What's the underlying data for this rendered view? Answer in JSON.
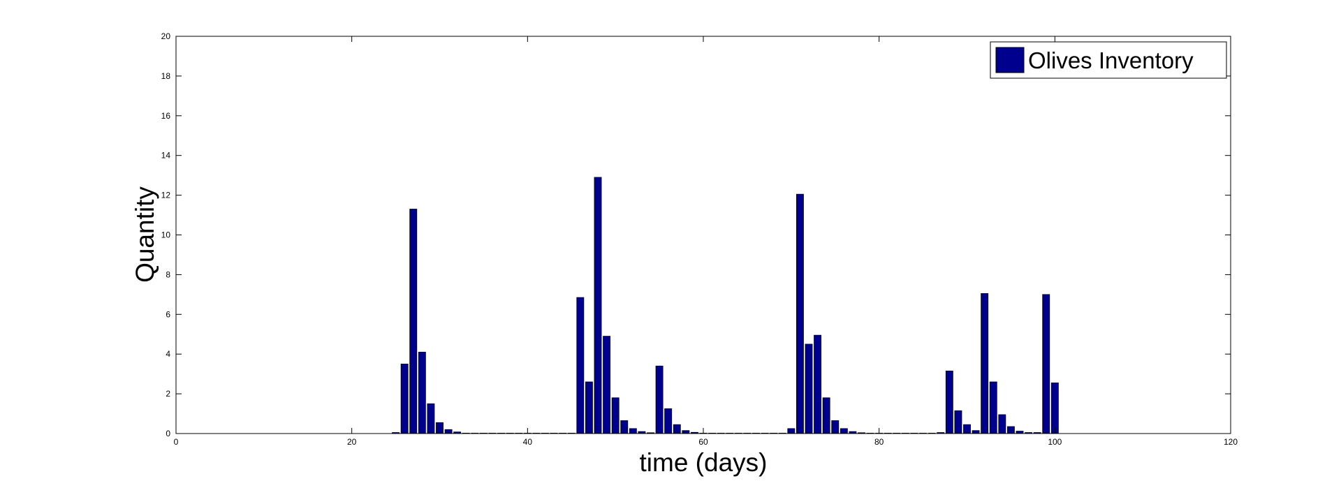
{
  "chart_data": {
    "type": "bar",
    "x": [
      25,
      26,
      27,
      28,
      29,
      30,
      31,
      32,
      33,
      34,
      35,
      36,
      37,
      38,
      39,
      40,
      41,
      42,
      43,
      44,
      45,
      46,
      47,
      48,
      49,
      50,
      51,
      52,
      53,
      54,
      55,
      56,
      57,
      58,
      59,
      60,
      61,
      62,
      63,
      64,
      65,
      66,
      67,
      68,
      69,
      70,
      71,
      72,
      73,
      74,
      75,
      76,
      77,
      78,
      79,
      80,
      81,
      82,
      83,
      84,
      85,
      86,
      87,
      88,
      89,
      90,
      91,
      92,
      93,
      94,
      95,
      96,
      97,
      98,
      99,
      100
    ],
    "series": [
      {
        "name": "Olives Inventory",
        "color": "#00008f",
        "values": [
          0.05,
          3.5,
          11.3,
          4.1,
          1.5,
          0.55,
          0.2,
          0.08,
          0.02,
          0.02,
          0.02,
          0.02,
          0.02,
          0.02,
          0.02,
          0.02,
          0.02,
          0.02,
          0.02,
          0.02,
          0.02,
          6.85,
          2.6,
          12.9,
          4.9,
          1.8,
          0.65,
          0.25,
          0.1,
          0.04,
          3.4,
          1.25,
          0.45,
          0.15,
          0.06,
          0.02,
          0.02,
          0.02,
          0.02,
          0.02,
          0.02,
          0.02,
          0.02,
          0.02,
          0.02,
          0.25,
          12.05,
          4.5,
          4.95,
          1.8,
          0.65,
          0.25,
          0.1,
          0.04,
          0.02,
          0.02,
          0.02,
          0.02,
          0.02,
          0.02,
          0.02,
          0.02,
          0.05,
          3.15,
          1.15,
          0.45,
          0.15,
          7.05,
          2.6,
          0.95,
          0.35,
          0.12,
          0.05,
          0.05,
          7.0,
          2.55
        ]
      }
    ],
    "x_label": "time (days)",
    "y_label": "Quantity",
    "xlim": [
      0,
      120
    ],
    "xticks": [
      0,
      20,
      40,
      60,
      80,
      100,
      120
    ],
    "ylim": [
      0,
      20
    ],
    "yticks": [
      0,
      2,
      4,
      6,
      8,
      10,
      12,
      14,
      16,
      18,
      20
    ],
    "bar_width": 0.8,
    "legend": "upper right",
    "grid": false
  }
}
